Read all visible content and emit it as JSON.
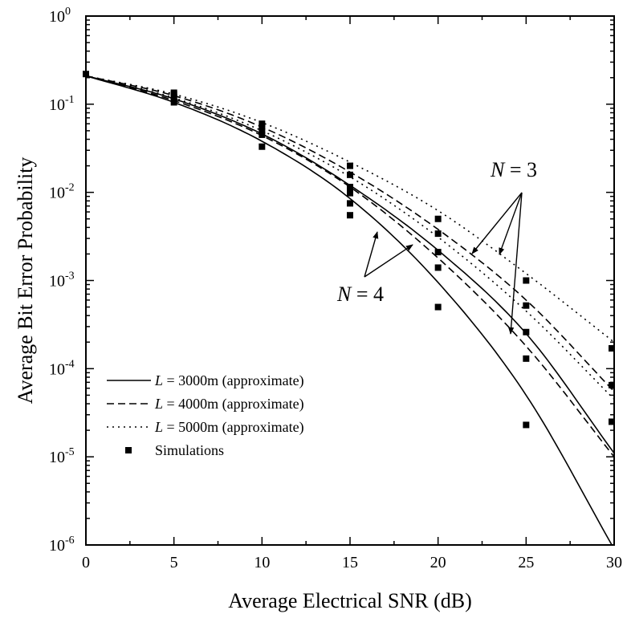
{
  "chart_data": {
    "type": "line",
    "xlabel": "Average Electrical SNR (dB)",
    "ylabel": "Average Bit Error Probability",
    "xlim": [
      0,
      30
    ],
    "ylim": [
      1e-06,
      1
    ],
    "yscale": "log",
    "grid": false,
    "legend_position": "bottom-left",
    "x_ticks": [
      0,
      5,
      10,
      15,
      20,
      25,
      30
    ],
    "x_tick_labels": [
      "0",
      "5",
      "10",
      "15",
      "20",
      "25",
      "30"
    ],
    "y_ticks": [
      1e-06,
      1e-05,
      0.0001,
      0.001,
      0.01,
      0.1,
      1
    ],
    "y_tick_labels": [
      {
        "base": "10",
        "exp": "-6"
      },
      {
        "base": "10",
        "exp": "-5"
      },
      {
        "base": "10",
        "exp": "-4"
      },
      {
        "base": "10",
        "exp": "-3"
      },
      {
        "base": "10",
        "exp": "-2"
      },
      {
        "base": "10",
        "exp": "-1"
      },
      {
        "base": "10",
        "exp": "0"
      }
    ],
    "legend": [
      {
        "var": "L",
        "text": " = 3000m (approximate)",
        "style": "solid"
      },
      {
        "var": "L",
        "text": " = 4000m (approximate)",
        "style": "dashed"
      },
      {
        "var": "L",
        "text": " = 5000m (approximate)",
        "style": "dotted"
      },
      {
        "var": "",
        "text": "Simulations",
        "style": "marker"
      }
    ],
    "annotations": [
      {
        "var": "N",
        "text": " = 3"
      },
      {
        "var": "N",
        "text": " = 4"
      }
    ],
    "series": [
      {
        "N": 4,
        "L": 3000,
        "style": "solid",
        "x": [
          0,
          5,
          10,
          15,
          20,
          25,
          30
        ],
        "y": [
          0.21,
          0.105,
          0.038,
          0.0085,
          0.00095,
          5e-05,
          9e-07
        ]
      },
      {
        "N": 4,
        "L": 4000,
        "style": "dashed",
        "x": [
          0,
          5,
          10,
          15,
          20,
          25,
          30
        ],
        "y": [
          0.21,
          0.11,
          0.044,
          0.0115,
          0.0018,
          0.00018,
          1e-05
        ]
      },
      {
        "N": 4,
        "L": 5000,
        "style": "dotted",
        "x": [
          0,
          5,
          10,
          15,
          20,
          25,
          30
        ],
        "y": [
          0.21,
          0.118,
          0.05,
          0.015,
          0.0031,
          0.00045,
          4.5e-05
        ]
      },
      {
        "N": 3,
        "L": 3000,
        "style": "solid",
        "x": [
          0,
          5,
          10,
          15,
          20,
          25,
          30
        ],
        "y": [
          0.21,
          0.115,
          0.046,
          0.012,
          0.0022,
          0.00025,
          1.1e-05
        ]
      },
      {
        "N": 3,
        "L": 4000,
        "style": "dashed",
        "x": [
          0,
          5,
          10,
          15,
          20,
          25,
          30
        ],
        "y": [
          0.21,
          0.125,
          0.055,
          0.017,
          0.0038,
          0.0006,
          5.5e-05
        ]
      },
      {
        "N": 3,
        "L": 5000,
        "style": "dotted",
        "x": [
          0,
          5,
          10,
          15,
          20,
          25,
          30
        ],
        "y": [
          0.21,
          0.13,
          0.062,
          0.022,
          0.0062,
          0.0012,
          0.0002
        ]
      }
    ],
    "simulations": {
      "x": [
        0,
        5,
        5,
        5,
        5,
        5,
        10,
        10,
        10,
        10,
        10,
        15,
        15,
        15,
        15,
        15,
        15,
        20,
        20,
        20,
        20,
        20,
        25,
        25,
        25,
        25,
        25,
        30,
        30,
        30
      ],
      "y": [
        0.22,
        0.105,
        0.115,
        0.12,
        0.13,
        0.135,
        0.033,
        0.045,
        0.05,
        0.055,
        0.06,
        0.0055,
        0.0098,
        0.0115,
        0.0158,
        0.02,
        0.0075,
        0.0005,
        0.0014,
        0.0021,
        0.0034,
        0.005,
        2.3e-05,
        0.00013,
        0.00026,
        0.00052,
        0.001,
        2.5e-05,
        6.5e-05,
        0.00017
      ]
    }
  }
}
